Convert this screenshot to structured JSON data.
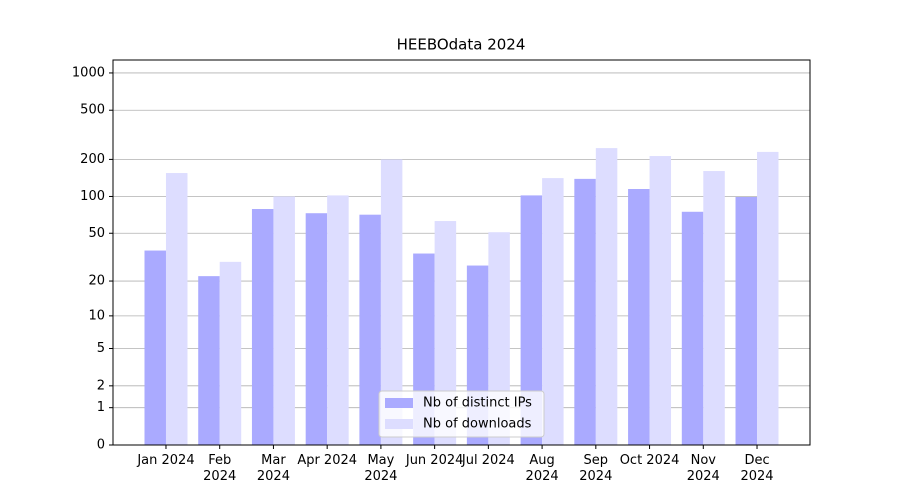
{
  "chart_data": {
    "type": "bar",
    "title": "HEEBOdata 2024",
    "categories": [
      "Jan 2024",
      "Feb 2024",
      "Mar 2024",
      "Apr 2024",
      "May 2024",
      "Jun 2024",
      "Jul 2024",
      "Aug 2024",
      "Sep 2024",
      "Oct 2024",
      "Nov 2024",
      "Dec 2024"
    ],
    "series": [
      {
        "name": "Nb of distinct IPs",
        "color": "#aaaaff",
        "values": [
          36,
          22,
          79,
          73,
          71,
          34,
          27,
          102,
          139,
          115,
          75,
          99
        ]
      },
      {
        "name": "Nb of downloads",
        "color": "#ddddff",
        "values": [
          155,
          29,
          100,
          102,
          200,
          63,
          51,
          141,
          247,
          213,
          161,
          230
        ]
      }
    ],
    "yscale": "log1p",
    "ylim": [
      0,
      1272
    ],
    "yticks": [
      0,
      1,
      2,
      5,
      10,
      20,
      50,
      100,
      200,
      500,
      1000
    ],
    "grid": true,
    "legend": "lower center"
  }
}
